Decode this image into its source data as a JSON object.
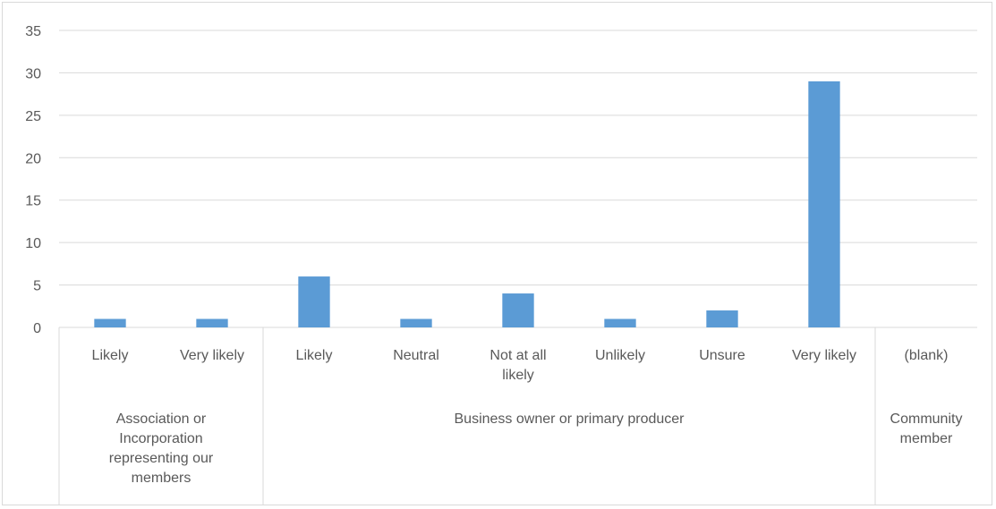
{
  "chart_data": {
    "type": "bar",
    "title": "",
    "xlabel": "",
    "ylabel": "",
    "ylim": [
      0,
      35
    ],
    "yticks": [
      0,
      5,
      10,
      15,
      20,
      25,
      30,
      35
    ],
    "grid": true,
    "legend": "none",
    "bar_color": "#5b9bd5",
    "groups": [
      {
        "name": "Association or Incorporation representing our members",
        "name_lines": [
          "Association or",
          "Incorporation",
          "representing our",
          "members"
        ],
        "categories": [
          {
            "label": "Likely",
            "label_lines": [
              "Likely"
            ],
            "value": 1
          },
          {
            "label": "Very likely",
            "label_lines": [
              "Very likely"
            ],
            "value": 1
          }
        ]
      },
      {
        "name": "Business owner or primary producer",
        "name_lines": [
          "Business owner or primary producer"
        ],
        "categories": [
          {
            "label": "Likely",
            "label_lines": [
              "Likely"
            ],
            "value": 6
          },
          {
            "label": "Neutral",
            "label_lines": [
              "Neutral"
            ],
            "value": 1
          },
          {
            "label": "Not at all likely",
            "label_lines": [
              "Not at all",
              "likely"
            ],
            "value": 4
          },
          {
            "label": "Unlikely",
            "label_lines": [
              "Unlikely"
            ],
            "value": 1
          },
          {
            "label": "Unsure",
            "label_lines": [
              "Unsure"
            ],
            "value": 2
          },
          {
            "label": "Very likely",
            "label_lines": [
              "Very likely"
            ],
            "value": 29
          }
        ]
      },
      {
        "name": "Community member",
        "name_lines": [
          "Community",
          "member"
        ],
        "categories": [
          {
            "label": "(blank)",
            "label_lines": [
              "(blank)"
            ],
            "value": 0
          }
        ]
      }
    ]
  }
}
